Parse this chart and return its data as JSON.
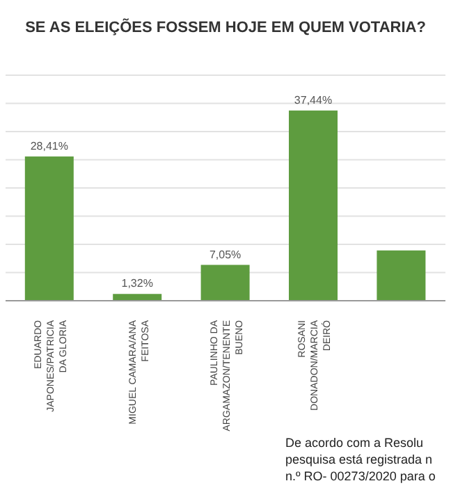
{
  "chart_data": {
    "type": "bar",
    "title": "SE AS ELEIÇÕES FOSSEM HOJE EM QUEM VOTARIA?",
    "categories": [
      "EDUARDO JAPONES/PATRICIA DA GLORIA",
      "MIGUEL CAMARA/ANA FEITOSA",
      "PAULINHO DA ARGAMAZON/TENENTE BUENO",
      "ROSANI DONADON/MARCIA DEIRÓ",
      null
    ],
    "values": [
      28.41,
      1.32,
      7.05,
      37.44,
      9.9
    ],
    "value_labels": [
      "28,41%",
      "1,32%",
      "7,05%",
      "37,44%",
      null
    ],
    "color": "#5e9c3f",
    "ylim": [
      0,
      44.4
    ],
    "yticks": [
      {
        "value": 0,
        "label": null
      },
      {
        "value": 5.55,
        "label": null
      },
      {
        "value": 11.1,
        "label": null
      },
      {
        "value": 16.65,
        "label": null
      },
      {
        "value": 22.2,
        "label": null
      },
      {
        "value": 27.75,
        "label": null
      },
      {
        "value": 33.3,
        "label": null
      },
      {
        "value": 38.85,
        "label": null
      },
      {
        "value": 44.4,
        "label": null
      }
    ],
    "grid": "y",
    "tick_labels": "x",
    "annotations": [
      "De acordo com a Resolu",
      "pesquisa está registrada n",
      "n.º RO- 00273/2020 para o"
    ]
  }
}
